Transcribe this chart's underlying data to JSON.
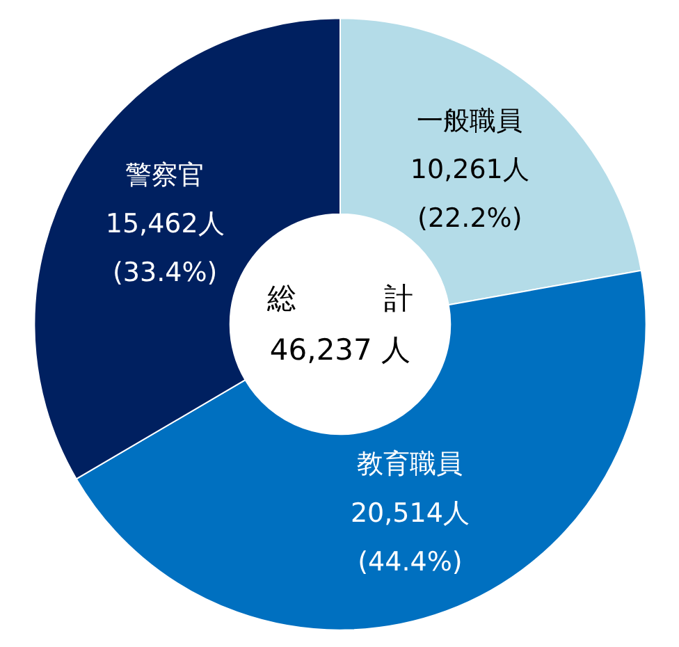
{
  "chart_data": {
    "type": "donut",
    "categories": [
      "一般職員",
      "教育職員",
      "警察官"
    ],
    "values": [
      10261,
      20514,
      15462
    ],
    "colors": [
      "#b4dce8",
      "#0070c0",
      "#002060"
    ],
    "value_labels": [
      "10,261人\n(22.2%)",
      "20,514人\n(44.4%)",
      "15,462人\n(33.4%)"
    ],
    "annotations": [
      "総　　　計",
      "46,237 人"
    ]
  }
}
